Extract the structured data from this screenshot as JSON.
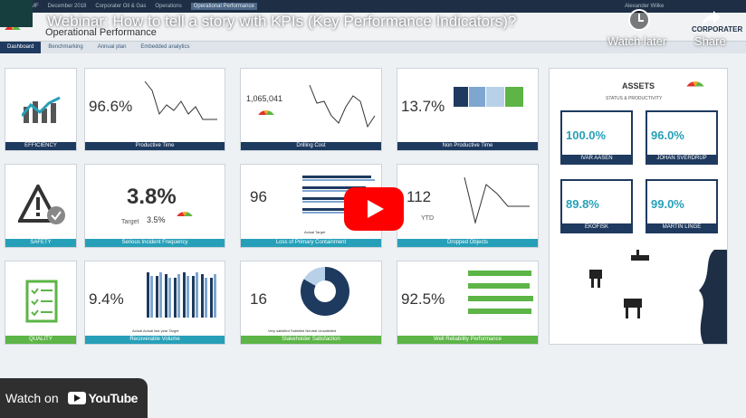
{
  "video": {
    "title": "Webinar: How to tell a story with KPIs (Key Performance Indicators)?",
    "watch_later": "Watch later",
    "share": "Share",
    "channel_label": "CORPORATER",
    "watch_on": "Watch on",
    "youtube": "YouTube"
  },
  "app": {
    "nav": [
      "BMF",
      "December 2018",
      "Corporater Oil & Gas",
      "Operations",
      "Operational Performance"
    ],
    "user": "Alexander Wilke",
    "page_title": "Operational Performance",
    "tabs": [
      "Dashboard",
      "Benchmarking",
      "Annual plan",
      "Embedded analytics"
    ]
  },
  "tiles": {
    "efficiency": "EFFICIENCY",
    "productive_time": {
      "value": "96.6%",
      "label": "Productive Time"
    },
    "drilling_cost": {
      "value": "1,065,041",
      "label": "Drilling Cost"
    },
    "non_productive_time": {
      "value": "13.7%",
      "label": "Non Productive Time"
    },
    "safety": "SAFETY",
    "serious_incident": {
      "value": "3.8%",
      "target_label": "Target",
      "target_value": "3.5%",
      "label": "Serious Incident Frequency"
    },
    "loss_containment": {
      "value": "96",
      "label": "Loss of Primary Containment",
      "legend": [
        "Actual",
        "Target"
      ]
    },
    "dropped_objects": {
      "value": "112",
      "sub": "YTD",
      "label": "Dropped Objects"
    },
    "quality": "QUALITY",
    "recoverable_volume": {
      "value": "9.4%",
      "label": "Recoverable Volume",
      "legend": [
        "Actual",
        "Actual last year",
        "Target"
      ]
    },
    "stakeholder": {
      "value": "16",
      "label": "Stakeholder Satisfaction",
      "legend": [
        "Very satisfied",
        "Satisfied",
        "Neutral",
        "Unsatisfied"
      ]
    },
    "well_reliability": {
      "value": "92.5%",
      "label": "Well Reliability Performance"
    }
  },
  "assets": {
    "title": "ASSETS",
    "subtitle": "STATUS & PRODUCTIVITY",
    "cards": [
      {
        "value": "100.0%",
        "name": "IVAR AASEN"
      },
      {
        "value": "96.0%",
        "name": "JOHAN SVERDRUP"
      },
      {
        "value": "89.8%",
        "name": "EKOFISK"
      },
      {
        "value": "99.0%",
        "name": "MARTIN LINGE"
      }
    ]
  },
  "colors": {
    "navy": "#1e3a5f",
    "teal": "#26a0b8",
    "green": "#5cb546",
    "red": "#ff0000"
  }
}
